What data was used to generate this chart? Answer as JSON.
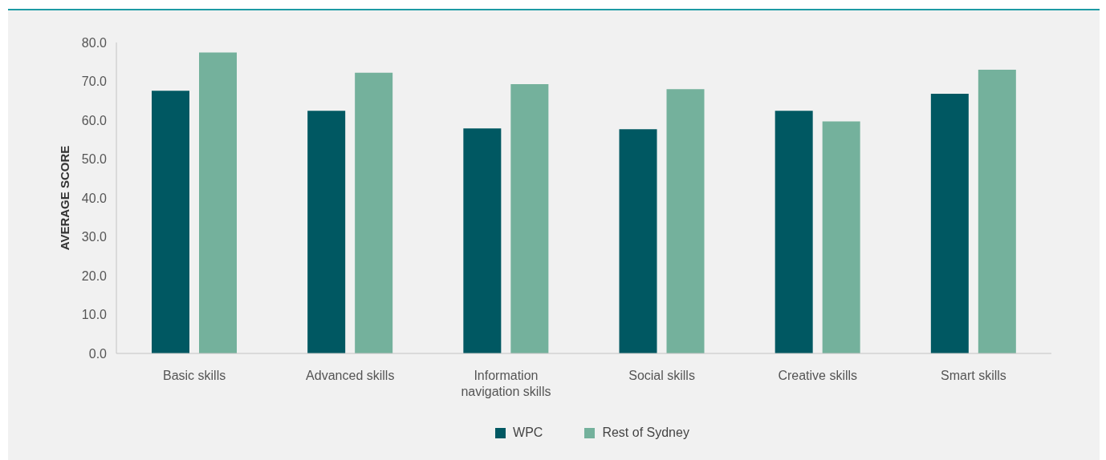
{
  "chart_data": {
    "type": "bar",
    "ylabel": "AVERAGE SCORE",
    "categories": [
      "Basic skills",
      "Advanced skills",
      "Information navigation skills",
      "Social skills",
      "Creative skills",
      "Smart skills"
    ],
    "series": [
      {
        "name": "WPC",
        "color": "#005862",
        "values": [
          67.6,
          62.4,
          57.9,
          57.7,
          62.4,
          66.8
        ]
      },
      {
        "name": "Rest of Sydney",
        "color": "#74b19c",
        "values": [
          77.4,
          72.2,
          69.3,
          68.0,
          59.7,
          73.0
        ]
      }
    ],
    "ylim": [
      0,
      80
    ],
    "yticks": [
      {
        "value": 0,
        "label": "0.0"
      },
      {
        "value": 10,
        "label": "10.0"
      },
      {
        "value": 20,
        "label": "20.0"
      },
      {
        "value": 30,
        "label": "30.0"
      },
      {
        "value": 40,
        "label": "40.0"
      },
      {
        "value": 50,
        "label": "50.0"
      },
      {
        "value": 60,
        "label": "60.0"
      },
      {
        "value": 70,
        "label": "70.0"
      },
      {
        "value": 80,
        "label": "80.0"
      }
    ],
    "legend": "bottom"
  }
}
